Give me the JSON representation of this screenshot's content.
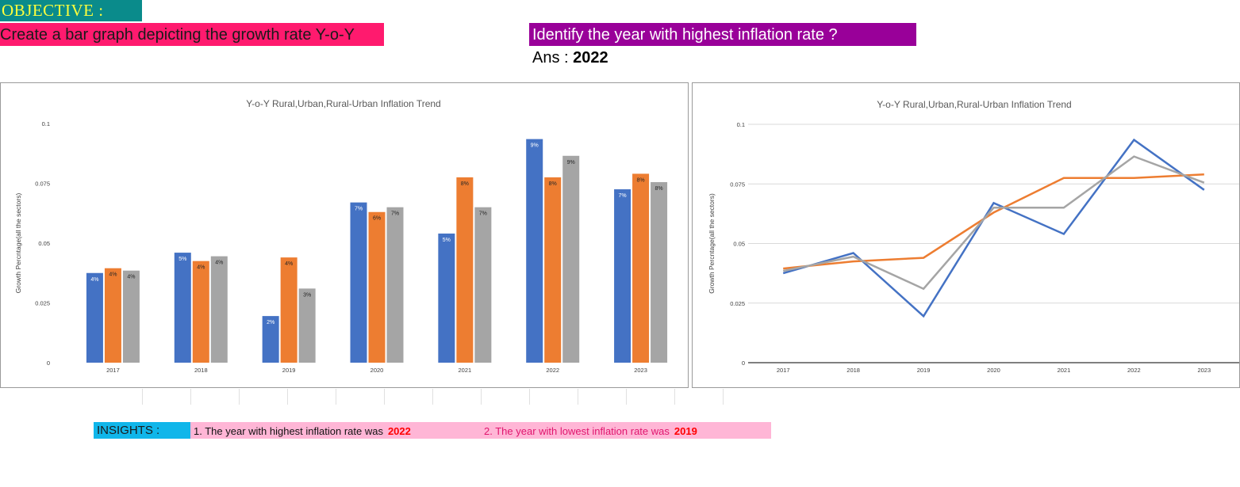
{
  "header": {
    "objective_label": "OBJECTIVE :",
    "task": "Create a bar graph depicting the growth rate Y-o-Y",
    "question": "Identify the year with highest inflation rate ?",
    "answer_prefix": "Ans :",
    "answer_value": "2022"
  },
  "insights": {
    "label": "INSIGHTS :",
    "item1_text": "1.  The year with highest inflation rate was",
    "item1_year": "2022",
    "item2_text": "2.  The year with lowest inflation rate was",
    "item2_year": "2019"
  },
  "chart_data": [
    {
      "type": "bar",
      "title": "Y-o-Y Rural,Urban,Rural-Urban Inflation Trend",
      "xlabel": "",
      "ylabel": "Growth Percntage(all the sectors)",
      "ylim": [
        0,
        0.1
      ],
      "yticks": [
        0,
        0.025,
        0.05,
        0.075,
        0.1
      ],
      "grid": false,
      "legend": "none",
      "categories": [
        "2017",
        "2018",
        "2019",
        "2020",
        "2021",
        "2022",
        "2023"
      ],
      "series": [
        {
          "color": "#4472c4",
          "values": [
            0.0375,
            0.046,
            0.0195,
            0.067,
            0.054,
            0.0935,
            0.0725
          ],
          "labels": [
            "4%",
            "5%",
            "2%",
            "7%",
            "5%",
            "9%",
            "7%"
          ]
        },
        {
          "color": "#ed7d31",
          "values": [
            0.0395,
            0.0425,
            0.044,
            0.063,
            0.0775,
            0.0775,
            0.079
          ],
          "labels": [
            "4%",
            "4%",
            "4%",
            "6%",
            "8%",
            "8%",
            "8%"
          ]
        },
        {
          "color": "#a5a5a5",
          "values": [
            0.0385,
            0.0445,
            0.031,
            0.065,
            0.065,
            0.0865,
            0.0755
          ],
          "labels": [
            "4%",
            "4%",
            "3%",
            "7%",
            "7%",
            "9%",
            "8%"
          ]
        }
      ]
    },
    {
      "type": "line",
      "title": "Y-o-Y Rural,Urban,Rural-Urban Inflation Trend",
      "xlabel": "",
      "ylabel": "Growth Percntage(all the sectors)",
      "ylim": [
        0,
        0.1
      ],
      "yticks": [
        0,
        0.025,
        0.05,
        0.075,
        0.1
      ],
      "grid": true,
      "legend": "none",
      "categories": [
        "2017",
        "2018",
        "2019",
        "2020",
        "2021",
        "2022",
        "2023"
      ],
      "series": [
        {
          "color": "#4472c4",
          "values": [
            0.0375,
            0.046,
            0.0195,
            0.067,
            0.054,
            0.0935,
            0.0725
          ]
        },
        {
          "color": "#ed7d31",
          "values": [
            0.0395,
            0.0425,
            0.044,
            0.063,
            0.0775,
            0.0775,
            0.079
          ]
        },
        {
          "color": "#a5a5a5",
          "values": [
            0.0385,
            0.0445,
            0.031,
            0.065,
            0.065,
            0.0865,
            0.0755
          ]
        }
      ]
    }
  ]
}
